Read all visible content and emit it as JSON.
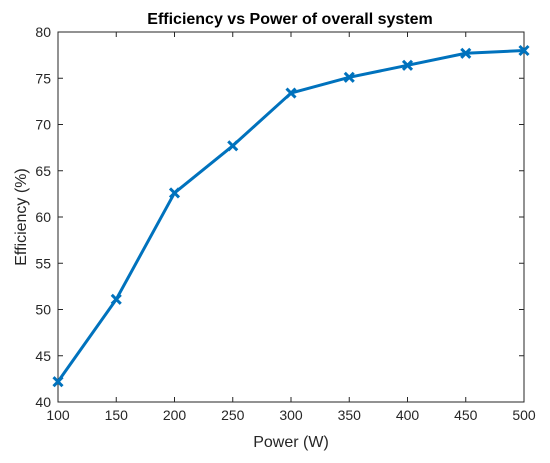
{
  "chart_data": {
    "type": "line",
    "title": "Efficiency vs Power of overall system",
    "xlabel": "Power (W)",
    "ylabel": "Efficiency (%)",
    "xlim": [
      100,
      500
    ],
    "ylim": [
      40,
      80
    ],
    "xticks": [
      100,
      150,
      200,
      250,
      300,
      350,
      400,
      450,
      500
    ],
    "yticks": [
      40,
      45,
      50,
      55,
      60,
      65,
      70,
      75,
      80
    ],
    "grid": false,
    "series": [
      {
        "color": "#0072BD",
        "marker": "x",
        "x": [
          100,
          150,
          200,
          250,
          300,
          350,
          400,
          450,
          500
        ],
        "values": [
          42.2,
          51.1,
          62.6,
          67.7,
          73.4,
          75.1,
          76.4,
          77.7,
          78.0
        ]
      }
    ]
  }
}
